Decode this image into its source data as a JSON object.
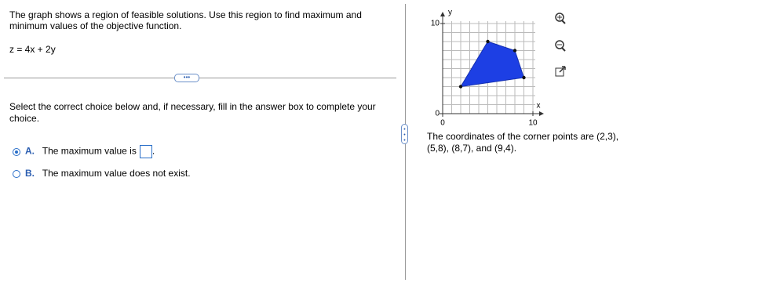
{
  "question": {
    "intro": "The graph shows a region of feasible solutions. Use this region to find maximum and minimum values of the objective function.",
    "objective": "z = 4x + 2y",
    "instruction": "Select the correct choice below and, if necessary, fill in the answer box to complete your choice.",
    "choices": [
      {
        "letter": "A.",
        "text": "The maximum value is",
        "suffix": "."
      },
      {
        "letter": "B.",
        "text": "The maximum value does not exist."
      }
    ]
  },
  "graph": {
    "x_label": "x",
    "y_label": "y",
    "xlim": [
      0,
      10
    ],
    "ylim": [
      0,
      10
    ],
    "xticks": [
      0,
      10
    ],
    "yticks": [
      0,
      10
    ],
    "polygon": {
      "x": [
        2,
        5,
        8,
        9
      ],
      "y": [
        3,
        8,
        7,
        4
      ]
    },
    "caption": "The coordinates of the corner points are (2,3), (5,8), (8,7), and (9,4)."
  }
}
